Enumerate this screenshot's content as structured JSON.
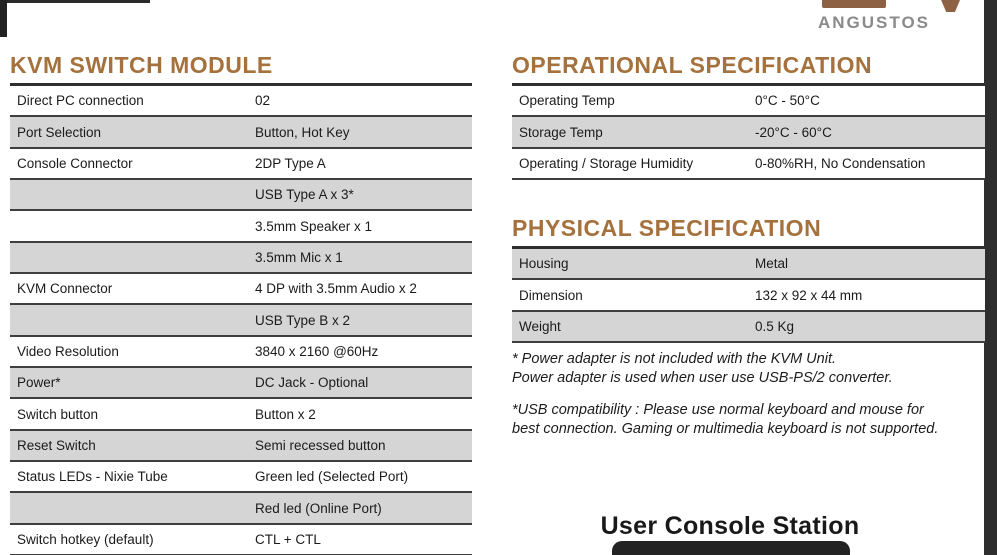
{
  "brand": {
    "name": "ANGUSTOS"
  },
  "colors": {
    "heading_brown": "#a5713c",
    "logo_brown": "#8d6144",
    "brand_gray": "#8a8a8a",
    "row_shade": "#d5d5d5",
    "edge_dark": "#2e2e2e"
  },
  "sections": {
    "kvm": {
      "title": "KVM SWITCH MODULE",
      "rows": [
        {
          "label": "Direct PC connection",
          "value": "02",
          "shaded": false
        },
        {
          "label": "Port Selection",
          "value": "Button, Hot Key",
          "shaded": true
        },
        {
          "label": "Console Connector",
          "value": "2DP Type A",
          "shaded": false
        },
        {
          "label": "",
          "value": "USB Type A x 3*",
          "shaded": true
        },
        {
          "label": "",
          "value": "3.5mm Speaker x 1",
          "shaded": false
        },
        {
          "label": "",
          "value": "3.5mm Mic x 1",
          "shaded": true
        },
        {
          "label": "KVM Connector",
          "value": "4 DP with 3.5mm Audio x 2",
          "shaded": false
        },
        {
          "label": "",
          "value": "USB Type B x 2",
          "shaded": true
        },
        {
          "label": "Video Resolution",
          "value": "3840 x 2160 @60Hz",
          "shaded": false
        },
        {
          "label": "Power*",
          "value": "DC Jack - Optional",
          "shaded": true
        },
        {
          "label": "Switch button",
          "value": "Button x 2",
          "shaded": false
        },
        {
          "label": "Reset Switch",
          "value": "Semi recessed button",
          "shaded": true
        },
        {
          "label": "Status LEDs - Nixie Tube",
          "value": "Green led (Selected Port)",
          "shaded": false
        },
        {
          "label": "",
          "value": "Red led (Online Port)",
          "shaded": true
        },
        {
          "label": "Switch hotkey (default)",
          "value": "CTL + CTL",
          "shaded": false
        }
      ]
    },
    "operational": {
      "title": "OPERATIONAL SPECIFICATION",
      "rows": [
        {
          "label": "Operating Temp",
          "value": "0°C - 50°C",
          "shaded": false
        },
        {
          "label": "Storage Temp",
          "value": "-20°C - 60°C",
          "shaded": true
        },
        {
          "label": "Operating / Storage Humidity",
          "value": "0-80%RH, No Condensation",
          "shaded": false
        }
      ]
    },
    "physical": {
      "title": "PHYSICAL SPECIFICATION",
      "rows": [
        {
          "label": "Housing",
          "value": "Metal",
          "shaded": true
        },
        {
          "label": "Dimension",
          "value": "132 x 92 x 44 mm",
          "shaded": false
        },
        {
          "label": "Weight",
          "value": "0.5 Kg",
          "shaded": true
        }
      ]
    }
  },
  "notes": {
    "power": [
      "* Power adapter is not included with the KVM Unit.",
      "Power adapter is used when user use USB-PS/2 converter."
    ],
    "usb": [
      "*USB compatibility : Please use normal keyboard and mouse for",
      "best connection. Gaming or multimedia keyboard is not supported."
    ]
  },
  "footer": {
    "caption": "User Console Station"
  }
}
